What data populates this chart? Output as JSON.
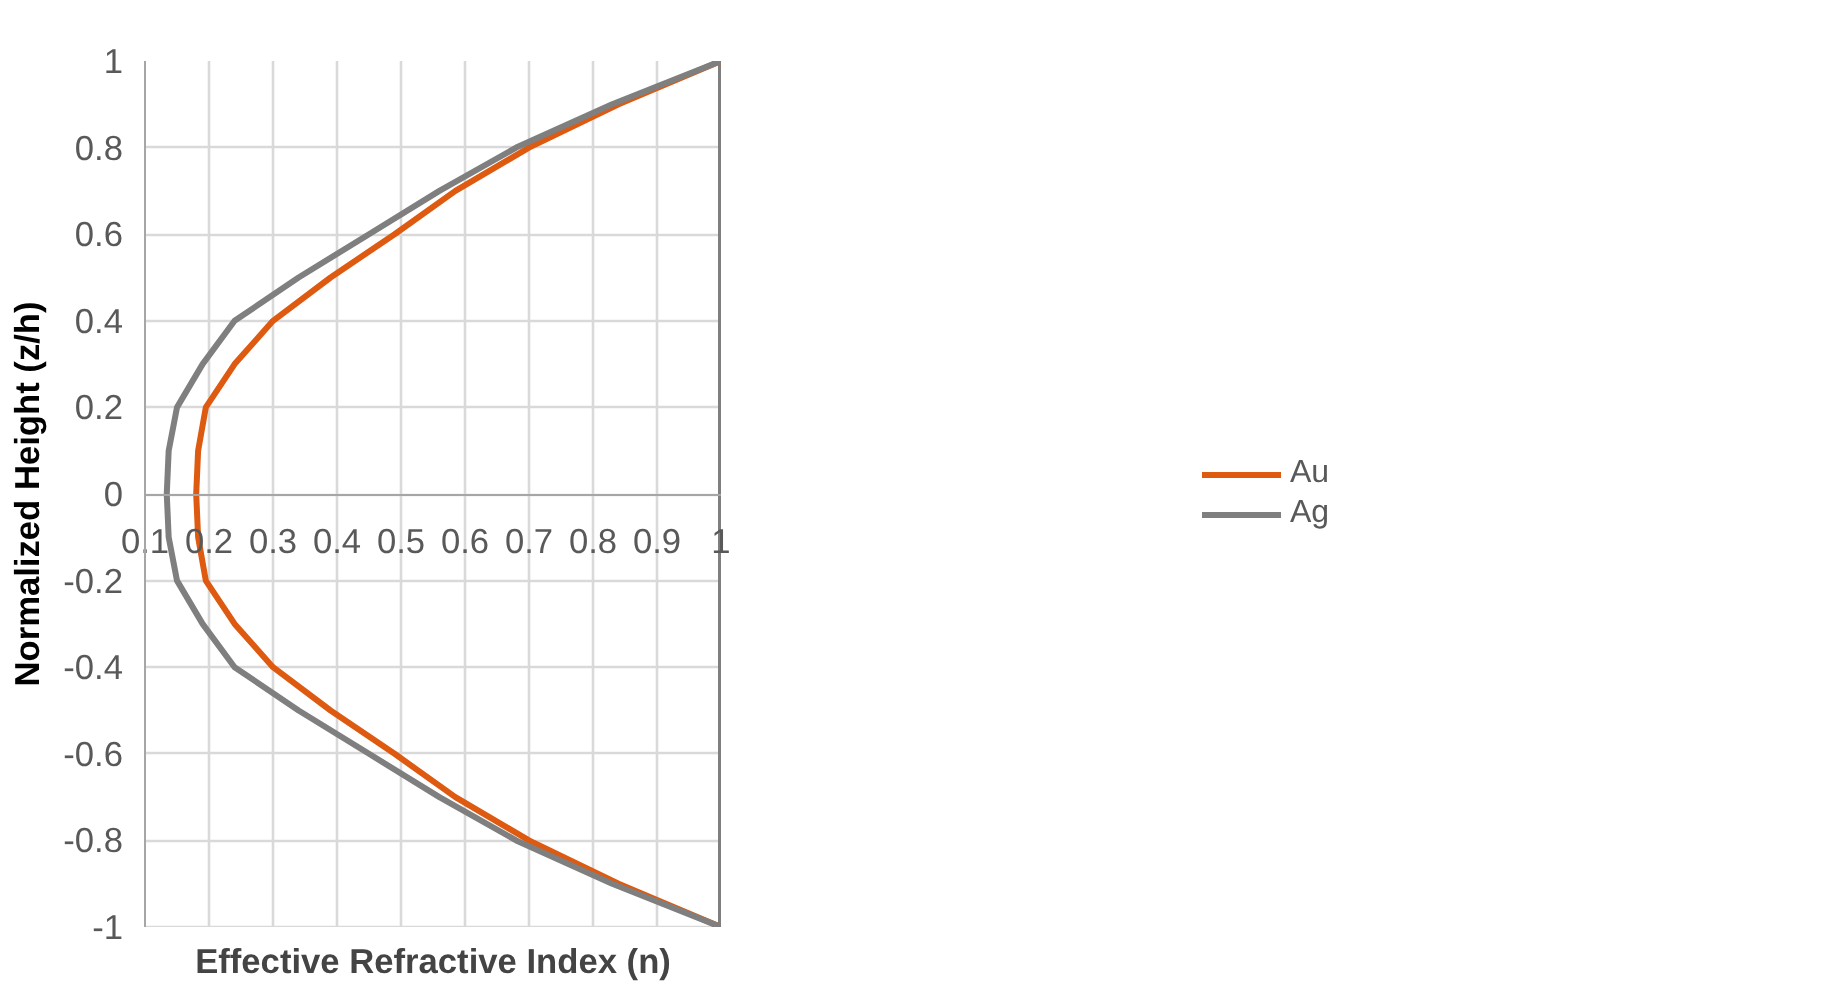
{
  "chart_data": {
    "type": "line",
    "xlabel": "Effective Refractive Index (n)",
    "ylabel": "Normalized Height (z/h)",
    "xlim": [
      0.1,
      1
    ],
    "xticks": [
      0.1,
      0.2,
      0.3,
      0.4,
      0.5,
      0.6,
      0.7,
      0.8,
      0.9,
      1
    ],
    "ylim": [
      -1,
      1
    ],
    "yticks": [
      -1,
      -0.8,
      -0.6,
      -0.4,
      -0.2,
      0,
      0.2,
      0.4,
      0.6,
      0.8,
      1
    ],
    "grid": true,
    "legend": "right",
    "line_style": "solid",
    "ref_lines": [
      {
        "axis": "x",
        "value": 1,
        "label": null,
        "color": "#7f7f7f"
      }
    ],
    "series": [
      {
        "name": "Au",
        "color": "#dd5a10",
        "x": [
          1,
          0.84,
          0.7,
          0.585,
          0.49,
          0.39,
          0.3,
          0.24,
          0.195,
          0.183,
          0.18,
          0.183,
          0.195,
          0.24,
          0.3,
          0.39,
          0.49,
          0.585,
          0.7,
          0.84,
          1
        ],
        "values": [
          1,
          0.9,
          0.8,
          0.7,
          0.6,
          0.5,
          0.4,
          0.3,
          0.2,
          0.1,
          0,
          -0.1,
          -0.2,
          -0.3,
          -0.4,
          -0.5,
          -0.6,
          -0.7,
          -0.8,
          -0.9,
          -1
        ]
      },
      {
        "name": "Ag",
        "color": "#7f7f7f",
        "x": [
          1,
          0.83,
          0.68,
          0.56,
          0.45,
          0.34,
          0.24,
          0.19,
          0.15,
          0.137,
          0.134,
          0.137,
          0.15,
          0.19,
          0.24,
          0.34,
          0.45,
          0.56,
          0.68,
          0.83,
          1
        ],
        "values": [
          1,
          0.9,
          0.8,
          0.7,
          0.6,
          0.5,
          0.4,
          0.3,
          0.2,
          0.1,
          0,
          -0.1,
          -0.2,
          -0.3,
          -0.4,
          -0.5,
          -0.6,
          -0.7,
          -0.8,
          -0.9,
          -1
        ]
      }
    ]
  }
}
